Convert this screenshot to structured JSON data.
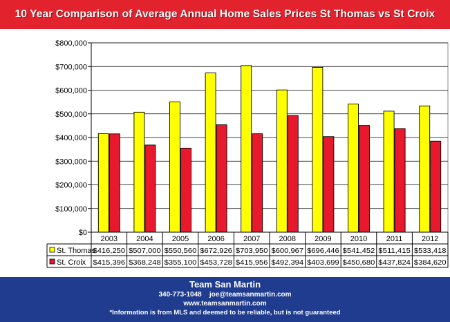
{
  "title": "10 Year Comparison of Average Annual Home Sales Prices St Thomas vs St Croix",
  "chart_data": {
    "type": "bar",
    "title": "10 Year Comparison of Average Annual Home Sales Prices St Thomas vs St Croix",
    "categories": [
      "2003",
      "2004",
      "2005",
      "2006",
      "2007",
      "2008",
      "2009",
      "2010",
      "2011",
      "2012"
    ],
    "series": [
      {
        "name": "St. Thomas",
        "color": "#ffff00",
        "values": [
          416250,
          507000,
          550560,
          672926,
          703950,
          600967,
          696446,
          541452,
          511415,
          533418
        ],
        "labels": [
          "$416,250",
          "$507,000",
          "$550,560",
          "$672,926",
          "$703,950",
          "$600,967",
          "$696,446",
          "$541,452",
          "$511,415",
          "$533,418"
        ]
      },
      {
        "name": "St. Croix",
        "color": "#e8192c",
        "values": [
          415396,
          368248,
          355100,
          453728,
          415956,
          492394,
          403699,
          450680,
          437824,
          384620
        ],
        "labels": [
          "$415,396",
          "$368,248",
          "$355,100",
          "$453,728",
          "$415,956",
          "$492,394",
          "$403,699",
          "$450,680",
          "$437,824",
          "$384,620"
        ]
      }
    ],
    "ylim": [
      0,
      800000
    ],
    "yticks": [
      "$0",
      "$100,000",
      "$200,000",
      "$300,000",
      "$400,000",
      "$500,000",
      "$600,000",
      "$700,000",
      "$800,000"
    ],
    "grid": true,
    "legend": "data-table"
  },
  "footer": {
    "name": "Team San Martin",
    "phone": "340-773-1048",
    "email": "joe@teamsanmartin.com",
    "website": "www.teamsanmartin.com",
    "disclaimer": "*Information is from MLS and deemed to be reliable, but is not guaranteed"
  }
}
